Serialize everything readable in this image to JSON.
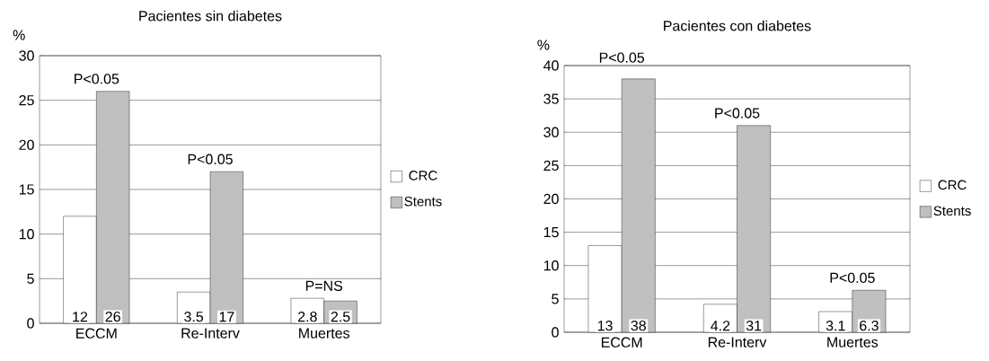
{
  "chart_data": [
    {
      "type": "bar",
      "title": "Pacientes sin diabetes",
      "ylabel": "%",
      "categories": [
        "ECCM",
        "Re-Interv",
        "Muertes"
      ],
      "series": [
        {
          "name": "CRC",
          "color": "#ffffff",
          "values": [
            12,
            3.5,
            2.8
          ]
        },
        {
          "name": "Stents",
          "color": "#c0c0c0",
          "values": [
            26,
            17,
            2.5
          ]
        }
      ],
      "ylim": [
        0,
        30
      ],
      "yticks": [
        0,
        5,
        10,
        15,
        20,
        25,
        30
      ],
      "grid": "y",
      "legend": "right",
      "data_labels": true,
      "annotations": [
        "P<0.05",
        "P<0.05",
        "P=NS"
      ]
    },
    {
      "type": "bar",
      "title": "Pacientes con diabetes",
      "ylabel": "%",
      "categories": [
        "ECCM",
        "Re-Interv",
        "Muertes"
      ],
      "series": [
        {
          "name": "CRC",
          "color": "#ffffff",
          "values": [
            13,
            4.2,
            3.1
          ]
        },
        {
          "name": "Stents",
          "color": "#c0c0c0",
          "values": [
            38,
            31,
            6.3
          ]
        }
      ],
      "ylim": [
        0,
        40
      ],
      "yticks": [
        0,
        5,
        10,
        15,
        20,
        25,
        30,
        35,
        40
      ],
      "grid": "y",
      "legend": "right",
      "data_labels": true,
      "annotations": [
        "P<0.05",
        "P<0.05",
        "P<0.05"
      ]
    }
  ]
}
